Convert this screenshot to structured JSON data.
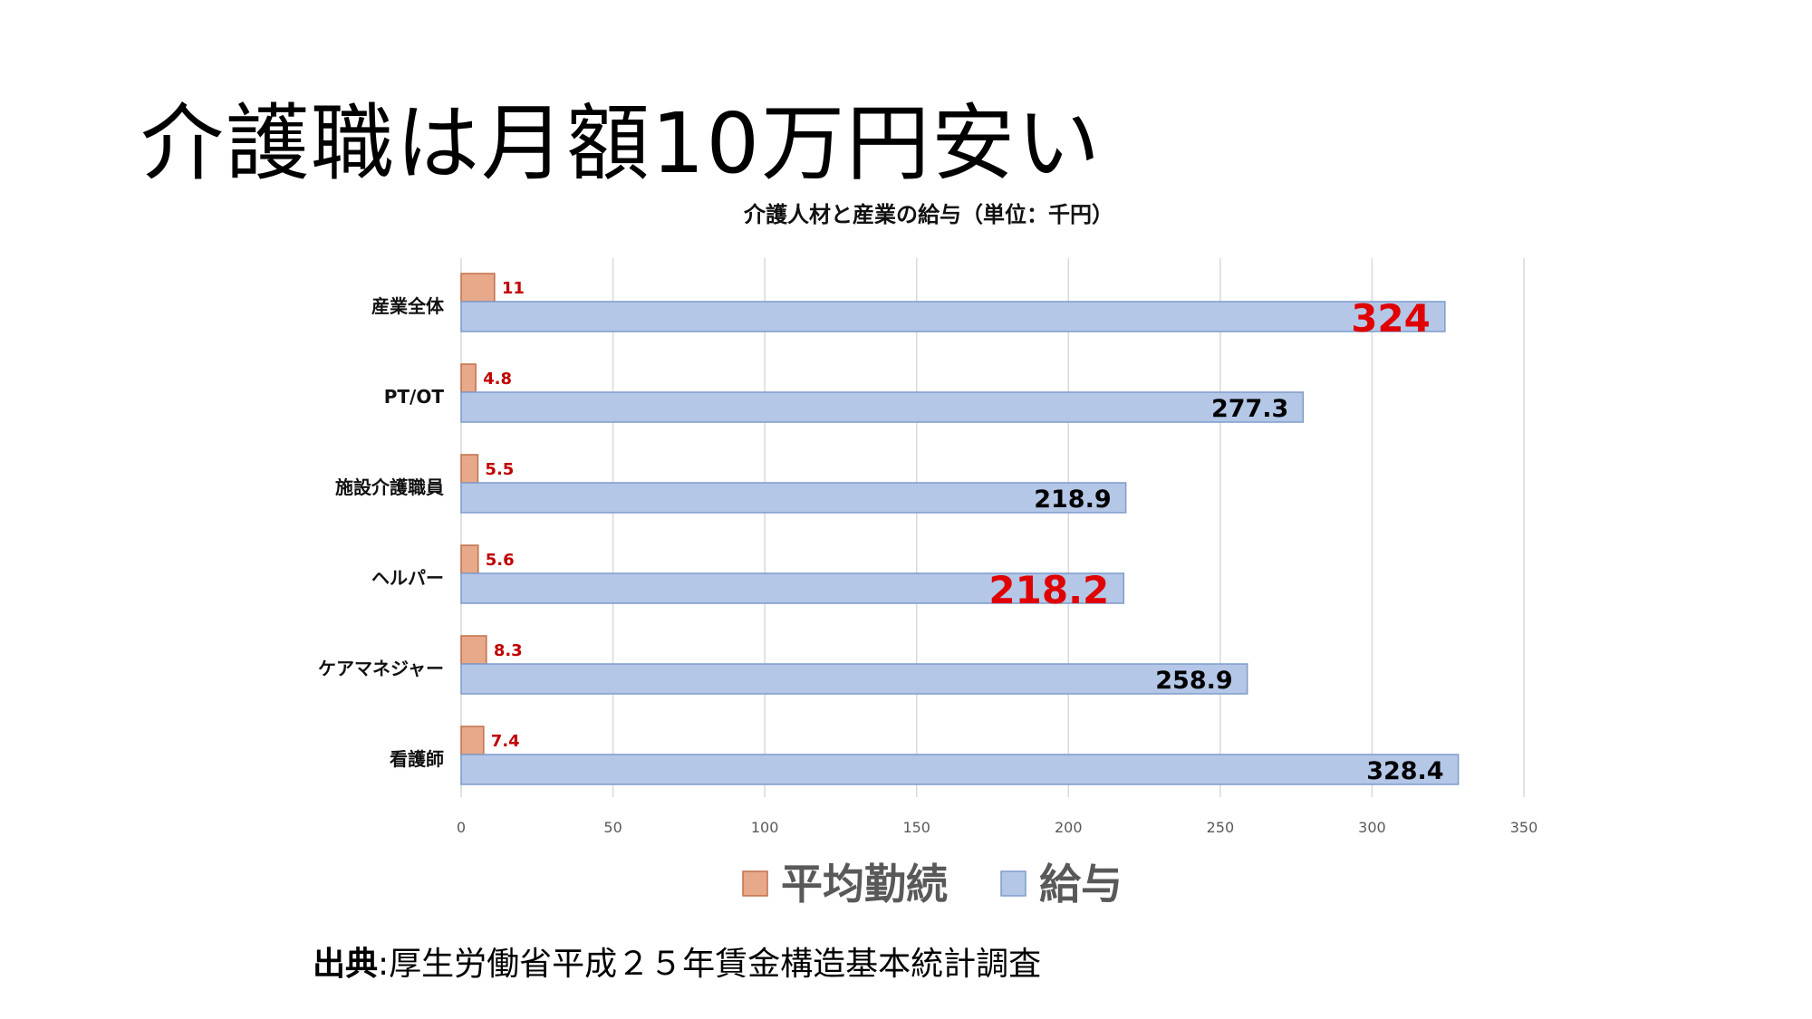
{
  "slide": {
    "title": "介護職は月額10万円安い",
    "source_label": "出典",
    "source_sep": ":",
    "source_text": "厚生労働省平成２５年賃金構造基本統計調査"
  },
  "chart_data": {
    "type": "bar",
    "orientation": "horizontal",
    "title": "介護人材と産業の給与（単位：千円）",
    "categories": [
      "産業全体",
      "PT/OT",
      "施設介護職員",
      "ヘルパー",
      "ケアマネジャー",
      "看護師"
    ],
    "series": [
      {
        "name": "平均勤続",
        "color": "#e8a88a",
        "values": [
          11,
          4.8,
          5.5,
          5.6,
          8.3,
          7.4
        ],
        "value_labels": [
          "11",
          "4.8",
          "5.5",
          "5.6",
          "8.3",
          "7.4"
        ],
        "label_color": "#c00000"
      },
      {
        "name": "給与",
        "color": "#b4c7e7",
        "values": [
          324,
          277.3,
          218.9,
          218.2,
          258.9,
          328.4
        ],
        "value_labels": [
          "324",
          "277.3",
          "218.9",
          "218.2",
          "258.9",
          "328.4"
        ],
        "label_colors": [
          "#e00000",
          "#000000",
          "#000000",
          "#e00000",
          "#000000",
          "#000000"
        ],
        "highlighted": [
          true,
          false,
          false,
          true,
          false,
          false
        ]
      }
    ],
    "xlim": [
      0,
      350
    ],
    "ticks": [
      "0",
      "50",
      "100",
      "150",
      "200",
      "250",
      "300",
      "350"
    ],
    "tick_values": [
      0,
      50,
      100,
      150,
      200,
      250,
      300,
      350
    ],
    "grid": true,
    "legend_position": "bottom"
  }
}
